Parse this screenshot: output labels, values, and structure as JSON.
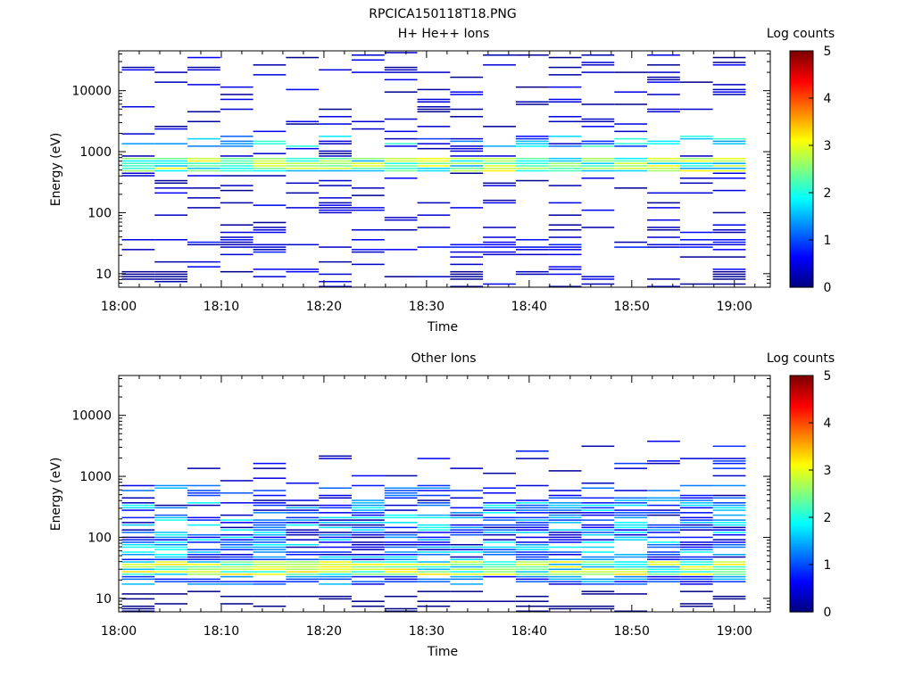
{
  "file_title": "RPCICA150118T18.PNG",
  "chart_data": [
    {
      "type": "heatmap",
      "title": "H+ He++ Ions",
      "xlabel": "Time",
      "ylabel": "Energy (eV)",
      "x_ticks": [
        "18:00",
        "18:10",
        "18:20",
        "18:30",
        "18:40",
        "18:50",
        "19:00"
      ],
      "x_range_minutes": [
        0,
        63.5
      ],
      "y_scale": "log",
      "y_ticks": [
        "10",
        "100",
        "1000",
        "10000"
      ],
      "y_range": [
        6,
        45000
      ],
      "colorbar": {
        "label": "Log counts",
        "min": 0,
        "max": 5,
        "ticks": [
          "0",
          "1",
          "2",
          "3",
          "4",
          "5"
        ]
      },
      "legend_position": "right",
      "grid": false
    },
    {
      "type": "heatmap",
      "title": "Other Ions",
      "xlabel": "Time",
      "ylabel": "Energy (eV)",
      "x_ticks": [
        "18:00",
        "18:10",
        "18:20",
        "18:30",
        "18:40",
        "18:50",
        "19:00"
      ],
      "x_range_minutes": [
        0,
        63.5
      ],
      "y_scale": "log",
      "y_ticks": [
        "10",
        "100",
        "1000",
        "10000"
      ],
      "y_range": [
        6,
        45000
      ],
      "colorbar": {
        "label": "Log counts",
        "min": 0,
        "max": 5,
        "ticks": [
          "0",
          "1",
          "2",
          "3",
          "4",
          "5"
        ]
      },
      "legend_position": "right",
      "grid": false
    }
  ]
}
